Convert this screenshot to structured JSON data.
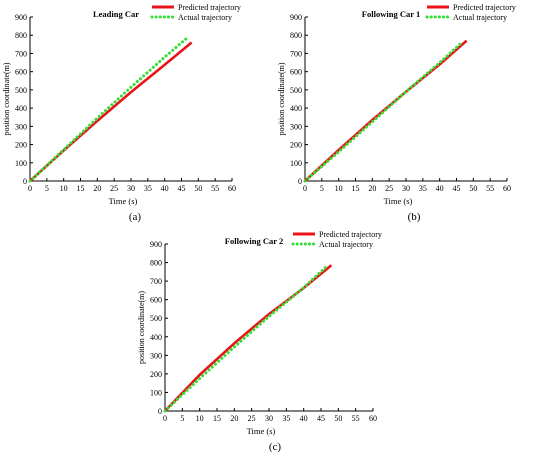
{
  "colors": {
    "predicted": "#e8141a",
    "actual": "#33dd33",
    "axis": "#000000"
  },
  "chart_data": [
    {
      "type": "line",
      "title": "Leading Car",
      "xlabel": "Time (s)",
      "ylabel": "position coordinate(m)",
      "caption": "(a)",
      "xlim": [
        0,
        60
      ],
      "ylim": [
        0,
        900
      ],
      "xticks": [
        0,
        5,
        10,
        15,
        20,
        25,
        30,
        35,
        40,
        45,
        50,
        55,
        60
      ],
      "yticks": [
        0,
        100,
        200,
        300,
        400,
        500,
        600,
        700,
        800,
        900
      ],
      "legend_position": "top-right",
      "series": [
        {
          "name": "Predicted trajectory",
          "style": "solid",
          "x": [
            0,
            10,
            20,
            30,
            40,
            48
          ],
          "y": [
            0,
            168,
            330,
            488,
            638,
            760
          ]
        },
        {
          "name": "Actual trajectory",
          "style": "dotted",
          "x": [
            0,
            10,
            20,
            30,
            40,
            47
          ],
          "y": [
            0,
            172,
            345,
            515,
            680,
            790
          ]
        }
      ]
    },
    {
      "type": "line",
      "title": "Following Car 1",
      "xlabel": "Time (s)",
      "ylabel": "position coordinate(m)",
      "caption": "(b)",
      "xlim": [
        0,
        60
      ],
      "ylim": [
        0,
        900
      ],
      "xticks": [
        0,
        5,
        10,
        15,
        20,
        25,
        30,
        35,
        40,
        45,
        50,
        55,
        60
      ],
      "yticks": [
        0,
        100,
        200,
        300,
        400,
        500,
        600,
        700,
        800,
        900
      ],
      "legend_position": "top-right",
      "series": [
        {
          "name": "Predicted trajectory",
          "style": "solid",
          "x": [
            0,
            10,
            20,
            30,
            40,
            48
          ],
          "y": [
            0,
            170,
            335,
            490,
            640,
            770
          ]
        },
        {
          "name": "Actual trajectory",
          "style": "dotted",
          "x": [
            0,
            10,
            20,
            30,
            40,
            46
          ],
          "y": [
            0,
            160,
            325,
            490,
            650,
            750
          ]
        }
      ]
    },
    {
      "type": "line",
      "title": "Following Car 2",
      "xlabel": "Time (s)",
      "ylabel": "position coordinate(m)",
      "caption": "(c)",
      "xlim": [
        0,
        60
      ],
      "ylim": [
        0,
        900
      ],
      "xticks": [
        0,
        5,
        10,
        15,
        20,
        25,
        30,
        35,
        40,
        45,
        50,
        55,
        60
      ],
      "yticks": [
        0,
        100,
        200,
        300,
        400,
        500,
        600,
        700,
        800,
        900
      ],
      "legend_position": "top-right",
      "series": [
        {
          "name": "Predicted trajectory",
          "style": "solid",
          "x": [
            0,
            10,
            20,
            30,
            40,
            48
          ],
          "y": [
            0,
            195,
            365,
            522,
            663,
            785
          ]
        },
        {
          "name": "Actual trajectory",
          "style": "dotted",
          "x": [
            0,
            10,
            20,
            30,
            40,
            47
          ],
          "y": [
            0,
            175,
            345,
            510,
            665,
            785
          ]
        }
      ]
    }
  ]
}
